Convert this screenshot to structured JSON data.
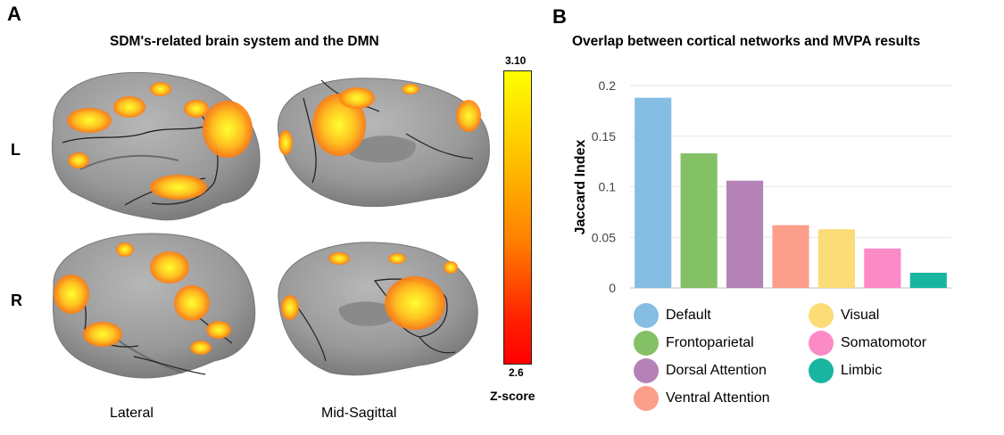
{
  "panel_a": {
    "letter": "A",
    "title": "SDM's-related brain system and the DMN",
    "row_labels": [
      "L",
      "R"
    ],
    "view_labels": [
      "Lateral",
      "Mid-Sagittal"
    ],
    "colorbar": {
      "max_label": "3.10",
      "min_label": "2.6",
      "title": "Z-score",
      "colors": [
        "#ffff00",
        "#ff8000",
        "#ff0000"
      ]
    }
  },
  "panel_b": {
    "letter": "B"
  },
  "chart_data": {
    "type": "bar",
    "title": "Overlap between cortical networks and MVPA results",
    "xlabel": "",
    "ylabel": "Jaccard Index",
    "ylim": [
      0,
      0.2
    ],
    "yticks": [
      0,
      0.05,
      0.1,
      0.15,
      0.2
    ],
    "ytick_labels": [
      "0",
      "0.05",
      "0.1",
      "0.15",
      "0.2"
    ],
    "grid": true,
    "categories": [
      "Default",
      "Frontoparietal",
      "Dorsal Attention",
      "Ventral Attention",
      "Visual",
      "Somatomotor",
      "Limbic"
    ],
    "values": [
      0.188,
      0.133,
      0.106,
      0.062,
      0.058,
      0.039,
      0.015
    ],
    "colors": [
      "#85bde3",
      "#84c065",
      "#b482b7",
      "#fb9e8a",
      "#fbdc77",
      "#fc8ac6",
      "#19b5a0"
    ],
    "legend": {
      "placement": "bottom",
      "entries": [
        "Default",
        "Visual",
        "Frontoparietal",
        "Somatomotor",
        "Dorsal Attention",
        "Limbic",
        "Ventral Attention"
      ]
    }
  }
}
